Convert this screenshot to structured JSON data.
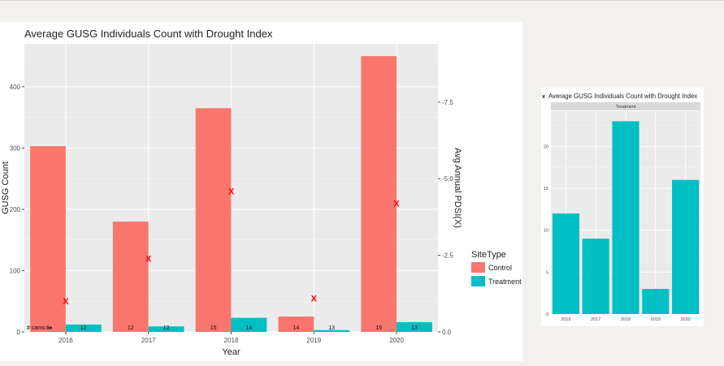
{
  "chart_data": [
    {
      "type": "bar",
      "title": "Average GUSG Individuals Count with Drought Index",
      "xlabel": "Year",
      "ylabel": "GUSG Count",
      "y2label": "Avg Annual PDSI(X)",
      "categories": [
        "2016",
        "2017",
        "2018",
        "2019",
        "2020"
      ],
      "series": [
        {
          "name": "Control",
          "color": "#f8766d",
          "values": [
            303,
            180,
            365,
            25,
            450
          ]
        },
        {
          "name": "Treatment",
          "color": "#00bfc4",
          "values": [
            12,
            9,
            23,
            3,
            16
          ]
        }
      ],
      "drought_markers": {
        "symbol": "X",
        "color": "#ff0000",
        "values": [
          -1.0,
          -2.4,
          -4.6,
          -1.1,
          -4.2
        ]
      },
      "cam_label": "# cams",
      "cam_counts": [
        {
          "control": "6",
          "treatment": "12"
        },
        {
          "control": "12",
          "treatment": "12"
        },
        {
          "control": "15",
          "treatment": "14"
        },
        {
          "control": "14",
          "treatment": "13"
        },
        {
          "control": "15",
          "treatment": "13"
        }
      ],
      "ylim": [
        0,
        470
      ],
      "y_ticks": [
        0,
        100,
        200,
        300,
        400
      ],
      "y2_ticks": [
        "0.0",
        "-2.5",
        "-5.0",
        "-7.5"
      ],
      "y2_tick_values": [
        0,
        -2.5,
        -5.0,
        -7.5
      ],
      "y2lim": [
        0,
        -9.4
      ],
      "legend": {
        "title": "SiteType",
        "position": "right",
        "items": [
          "Control",
          "Treatment"
        ]
      },
      "grid": true
    },
    {
      "type": "bar",
      "title": "Average GUSG Individuals Count with Drought Index",
      "title_prefix": "x",
      "facet_label": "Treatment",
      "categories": [
        "2016",
        "2017",
        "2018",
        "2019",
        "2020"
      ],
      "values": [
        12,
        9,
        23,
        3,
        16
      ],
      "color": "#00bfc4",
      "ylim": [
        0,
        24.2
      ],
      "y_ticks": [
        0,
        5,
        10,
        15,
        20
      ],
      "grid": true
    }
  ]
}
